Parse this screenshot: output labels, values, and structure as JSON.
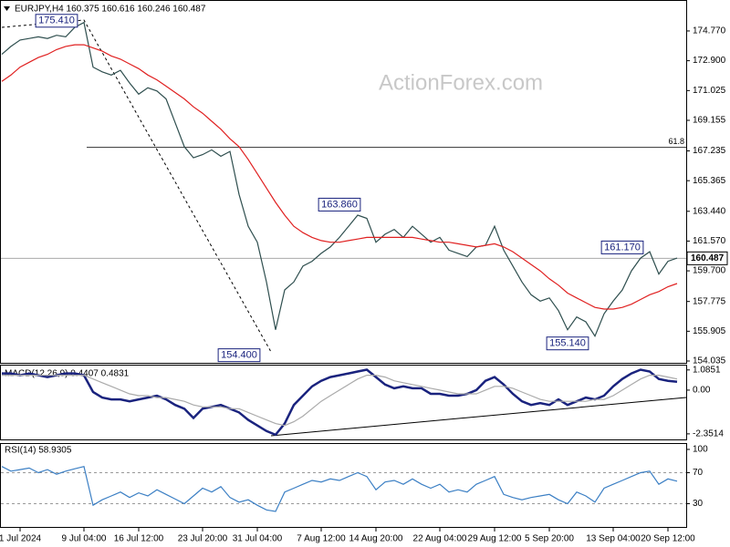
{
  "chart_data": [
    {
      "type": "line",
      "title": "EURJPY,H4  160.375 160.616 160.246 160.487",
      "watermark": "ActionForex.com",
      "ylim": [
        153.92,
        176.6
      ],
      "yticks": [
        {
          "value": 174.77,
          "label": "174.770"
        },
        {
          "value": 172.9,
          "label": "172.900"
        },
        171.025,
        169.155,
        167.235,
        165.365,
        {
          "value": 163.44,
          "label": "163.440"
        },
        {
          "value": 161.57,
          "label": "161.570"
        },
        {
          "value": 159.7,
          "label": "159.700"
        },
        157.775,
        155.905,
        154.035
      ],
      "last_price": 160.487,
      "fib_level": {
        "value": 167.46,
        "label": "61.8"
      },
      "annotations": [
        {
          "x": 6,
          "value": 175.41,
          "label": "175.410"
        },
        {
          "x": 37,
          "value": 163.86,
          "label": "163.860"
        },
        {
          "x": 26,
          "value": 154.4,
          "label": "154.400"
        },
        {
          "x": 62,
          "value": 155.14,
          "label": "155.140"
        },
        {
          "x": 68,
          "value": 161.17,
          "label": "161.170"
        }
      ],
      "series": [
        {
          "color": "#2f4f4f",
          "values": [
            173.3,
            173.8,
            174.2,
            174.3,
            174.4,
            174.3,
            174.5,
            174.4,
            175.0,
            175.3,
            172.5,
            172.2,
            172.0,
            172.3,
            171.5,
            170.8,
            171.2,
            171.0,
            170.5,
            169.0,
            167.5,
            166.8,
            167.0,
            167.3,
            166.9,
            167.2,
            164.5,
            162.5,
            161.5,
            159.0,
            156.0,
            158.5,
            159.0,
            160.0,
            160.3,
            160.8,
            161.2,
            161.8,
            162.5,
            163.2,
            163.0,
            161.5,
            162.0,
            162.3,
            161.8,
            162.5,
            162.0,
            161.5,
            161.8,
            161.0,
            160.8,
            160.6,
            161.2,
            161.3,
            162.5,
            161.0,
            160.0,
            159.0,
            158.2,
            157.8,
            158.0,
            157.2,
            156.0,
            156.8,
            156.5,
            155.6,
            157.0,
            157.8,
            158.5,
            159.7,
            160.5,
            160.9,
            159.5,
            160.3,
            160.5
          ]
        },
        {
          "color": "#e02020",
          "values": [
            171.6,
            172.0,
            172.5,
            172.8,
            173.1,
            173.3,
            173.6,
            173.8,
            173.9,
            173.9,
            173.7,
            173.5,
            173.2,
            173.0,
            172.7,
            172.4,
            172.0,
            171.7,
            171.3,
            170.9,
            170.5,
            170.0,
            169.6,
            169.1,
            168.6,
            168.0,
            167.5,
            166.7,
            165.8,
            164.9,
            164.0,
            163.2,
            162.5,
            162.1,
            161.8,
            161.6,
            161.5,
            161.5,
            161.6,
            161.7,
            161.8,
            161.8,
            161.8,
            161.8,
            161.8,
            161.8,
            161.7,
            161.6,
            161.5,
            161.5,
            161.4,
            161.3,
            161.2,
            161.3,
            161.4,
            161.2,
            160.9,
            160.5,
            160.1,
            159.7,
            159.2,
            158.8,
            158.3,
            158.0,
            157.7,
            157.4,
            157.3,
            157.3,
            157.4,
            157.6,
            157.9,
            158.2,
            158.4,
            158.7,
            158.9
          ]
        }
      ]
    },
    {
      "type": "line",
      "title": "MACD(12,26,9) 0.4407 0.4831",
      "ylim": [
        -2.7,
        1.32
      ],
      "yticks": [
        1.0851,
        {
          "value": 0,
          "label": "0.00"
        },
        -2.3514
      ],
      "series": [
        {
          "color": "#1a237e",
          "values": [
            0.9,
            0.9,
            0.8,
            0.9,
            0.8,
            0.7,
            0.8,
            0.9,
            0.9,
            0.8,
            -0.1,
            -0.4,
            -0.5,
            -0.5,
            -0.6,
            -0.5,
            -0.4,
            -0.3,
            -0.5,
            -0.8,
            -1.0,
            -1.5,
            -1.0,
            -0.9,
            -0.8,
            -1.0,
            -1.2,
            -1.6,
            -1.9,
            -2.2,
            -2.4,
            -1.8,
            -0.8,
            -0.3,
            0.2,
            0.5,
            0.7,
            0.8,
            0.9,
            1.0,
            1.1,
            0.7,
            0.3,
            0.1,
            0.2,
            0.1,
            0.1,
            -0.2,
            -0.2,
            -0.3,
            -0.3,
            -0.2,
            0.0,
            0.5,
            0.7,
            0.3,
            -0.2,
            -0.6,
            -0.8,
            -0.7,
            -0.8,
            -0.5,
            -0.8,
            -0.6,
            -0.4,
            -0.5,
            -0.3,
            0.2,
            0.6,
            0.9,
            1.1,
            1.0,
            0.6,
            0.5,
            0.45
          ]
        },
        {
          "color": "#aaaaaa",
          "values": [
            0.8,
            0.8,
            0.8,
            0.8,
            0.8,
            0.8,
            0.8,
            0.8,
            0.8,
            0.8,
            0.6,
            0.4,
            0.2,
            0.0,
            -0.2,
            -0.3,
            -0.3,
            -0.4,
            -0.4,
            -0.5,
            -0.6,
            -0.8,
            -0.9,
            -0.9,
            -0.9,
            -1.0,
            -1.0,
            -1.2,
            -1.4,
            -1.6,
            -1.8,
            -1.9,
            -1.7,
            -1.4,
            -1.0,
            -0.6,
            -0.3,
            0.0,
            0.3,
            0.6,
            0.8,
            0.8,
            0.7,
            0.5,
            0.4,
            0.3,
            0.2,
            0.1,
            0.0,
            -0.1,
            -0.2,
            -0.2,
            -0.2,
            0.0,
            0.2,
            0.2,
            0.1,
            -0.1,
            -0.3,
            -0.5,
            -0.6,
            -0.6,
            -0.6,
            -0.6,
            -0.6,
            -0.5,
            -0.5,
            -0.3,
            0.0,
            0.3,
            0.6,
            0.8,
            0.8,
            0.7,
            0.6
          ]
        }
      ]
    },
    {
      "type": "line",
      "title": "RSI(14) 58.9305",
      "ylim": [
        0,
        107
      ],
      "yticks": [
        100,
        70,
        30
      ],
      "levels": [
        70,
        30
      ],
      "categories": [
        null,
        null,
        "1 Jul 2024",
        null,
        null,
        null,
        null,
        null,
        null,
        "9 Jul 04:00",
        null,
        null,
        null,
        null,
        null,
        "16 Jul 12:00",
        null,
        null,
        null,
        null,
        null,
        null,
        "23 Jul 20:00",
        null,
        null,
        null,
        null,
        null,
        "31 Jul 04:00",
        null,
        null,
        null,
        null,
        null,
        null,
        "7 Aug 12:00",
        null,
        null,
        null,
        null,
        null,
        "14 Aug 20:00",
        null,
        null,
        null,
        null,
        null,
        null,
        "22 Aug 04:00",
        null,
        null,
        null,
        null,
        null,
        "29 Aug 12:00",
        null,
        null,
        null,
        null,
        null,
        "5 Sep 20:00",
        null,
        null,
        null,
        null,
        null,
        null,
        "13 Sep 04:00",
        null,
        null,
        null,
        null,
        null,
        "20 Sep 12:00",
        null
      ],
      "series": [
        {
          "color": "#3b7fc4",
          "values": [
            78,
            72,
            74,
            76,
            70,
            74,
            68,
            72,
            75,
            78,
            28,
            35,
            40,
            45,
            38,
            44,
            40,
            48,
            42,
            36,
            30,
            40,
            50,
            45,
            52,
            38,
            32,
            35,
            28,
            22,
            20,
            45,
            50,
            55,
            60,
            58,
            62,
            60,
            65,
            70,
            65,
            48,
            58,
            60,
            55,
            62,
            55,
            50,
            55,
            45,
            48,
            45,
            55,
            60,
            65,
            42,
            38,
            35,
            38,
            40,
            42,
            35,
            30,
            45,
            40,
            32,
            50,
            55,
            60,
            65,
            70,
            72,
            55,
            62,
            59
          ]
        }
      ]
    }
  ]
}
